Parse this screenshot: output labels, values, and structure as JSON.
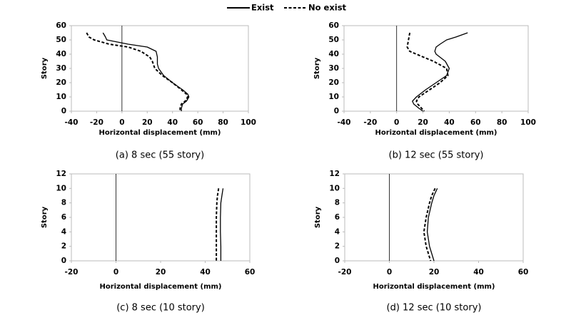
{
  "legend": [
    {
      "name": "Exist",
      "style": "solid"
    },
    {
      "name": "No exist",
      "style": "dashed"
    }
  ],
  "chart_data": [
    {
      "type": "line",
      "caption": "(a) 8 sec (55 story)",
      "xlabel": "Horizontal displacement (mm)",
      "ylabel": "Story",
      "xlim": [
        -40,
        100
      ],
      "xticks": [
        -40,
        -20,
        0,
        20,
        40,
        60,
        80,
        100
      ],
      "ylim": [
        0,
        60
      ],
      "yticks": [
        0,
        10,
        20,
        30,
        40,
        50,
        60
      ],
      "series": [
        {
          "style": "solid",
          "color": "#000000",
          "x": [
            -15,
            -13,
            -12,
            5,
            20,
            27,
            28,
            28,
            29,
            33,
            40,
            48,
            52,
            53,
            51,
            48,
            47,
            47
          ],
          "y": [
            55,
            52,
            50,
            47,
            45,
            42,
            38,
            33,
            30,
            25,
            20,
            15,
            12,
            10,
            7,
            5,
            2,
            0
          ]
        },
        {
          "style": "dashed",
          "color": "#000000",
          "x": [
            -28,
            -26,
            -22,
            -10,
            5,
            15,
            22,
            24,
            26,
            32,
            40,
            47,
            51,
            52,
            50,
            47,
            46,
            46
          ],
          "y": [
            55,
            52,
            50,
            47,
            45,
            42,
            38,
            35,
            30,
            25,
            20,
            15,
            12,
            10,
            7,
            5,
            2,
            0
          ]
        }
      ]
    },
    {
      "type": "line",
      "caption": "(b) 12 sec (55 story)",
      "xlabel": "Horizontal displacement (mm)",
      "ylabel": "Story",
      "xlim": [
        -40,
        100
      ],
      "xticks": [
        -40,
        -20,
        0,
        20,
        40,
        60,
        80,
        100
      ],
      "ylim": [
        0,
        60
      ],
      "yticks": [
        0,
        10,
        20,
        30,
        40,
        50,
        60
      ],
      "series": [
        {
          "style": "solid",
          "color": "#000000",
          "x": [
            54,
            45,
            38,
            33,
            30,
            29,
            30,
            37,
            40,
            38,
            30,
            22,
            15,
            12,
            13,
            17,
            20
          ],
          "y": [
            55,
            52,
            50,
            47,
            45,
            42,
            40,
            35,
            30,
            25,
            20,
            15,
            10,
            7,
            5,
            2,
            0
          ]
        },
        {
          "style": "dashed",
          "color": "#000000",
          "x": [
            10,
            9,
            8,
            10,
            15,
            28,
            38,
            39,
            33,
            25,
            17,
            15,
            16,
            19,
            21
          ],
          "y": [
            55,
            50,
            45,
            42,
            40,
            35,
            30,
            25,
            20,
            15,
            10,
            7,
            5,
            2,
            0
          ]
        }
      ]
    },
    {
      "type": "line",
      "caption": "(c) 8 sec (10 story)",
      "xlabel": "Horizontal displacement (mm)",
      "ylabel": "Story",
      "xlim": [
        -20,
        60
      ],
      "xticks": [
        -20,
        0,
        20,
        40,
        60
      ],
      "ylim": [
        0,
        12
      ],
      "yticks": [
        0,
        2,
        4,
        6,
        8,
        10,
        12
      ],
      "series": [
        {
          "style": "solid",
          "color": "#000000",
          "x": [
            48,
            47.5,
            47,
            46.8,
            46.8,
            47,
            47
          ],
          "y": [
            10,
            9,
            8,
            6,
            4,
            2,
            0
          ]
        },
        {
          "style": "dashed",
          "color": "#000000",
          "x": [
            46,
            45.5,
            45.2,
            45,
            45,
            45,
            45
          ],
          "y": [
            10,
            9,
            8,
            6,
            4,
            2,
            0
          ]
        }
      ]
    },
    {
      "type": "line",
      "caption": "(d) 12 sec (10 story)",
      "xlabel": "Horizontal displacement (mm)",
      "ylabel": "Story",
      "xlim": [
        -20,
        60
      ],
      "xticks": [
        -20,
        0,
        20,
        40,
        60
      ],
      "ylim": [
        0,
        12
      ],
      "yticks": [
        0,
        2,
        4,
        6,
        8,
        10,
        12
      ],
      "series": [
        {
          "style": "solid",
          "color": "#000000",
          "x": [
            21.5,
            20,
            19,
            17.5,
            17,
            18,
            20
          ],
          "y": [
            10,
            9,
            8,
            6,
            4,
            2,
            0
          ]
        },
        {
          "style": "dashed",
          "color": "#000000",
          "x": [
            20.5,
            19,
            18,
            16.5,
            15.5,
            16.5,
            18.5
          ],
          "y": [
            10,
            9,
            8,
            6,
            4,
            2,
            0
          ]
        }
      ]
    }
  ]
}
